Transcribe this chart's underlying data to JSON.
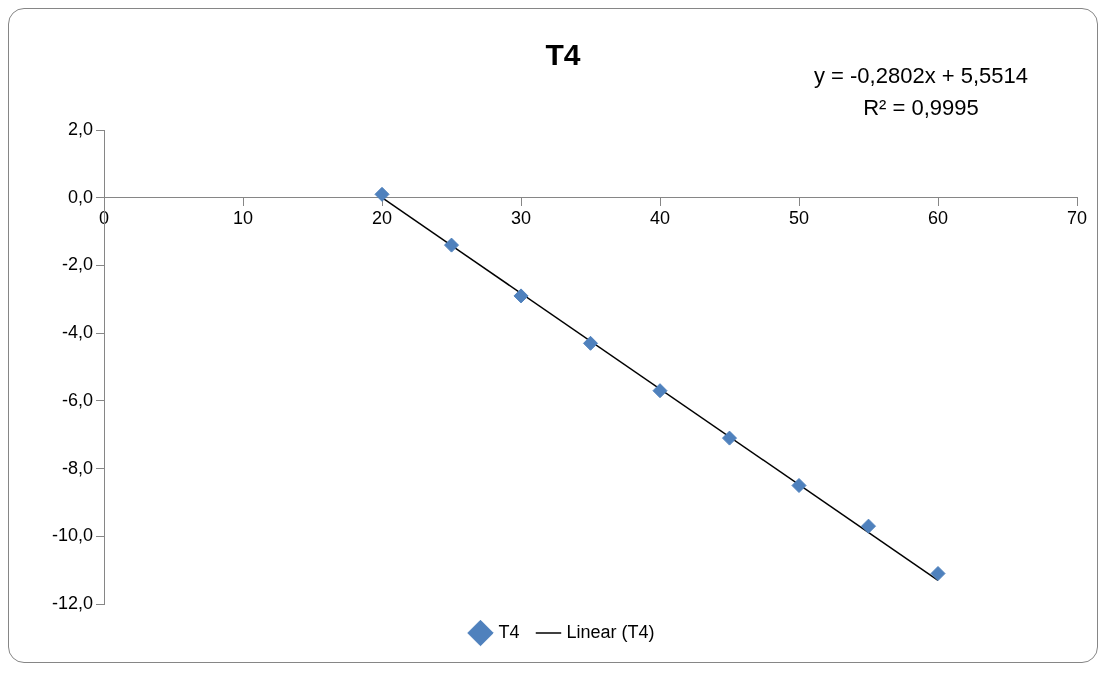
{
  "chart_data": {
    "type": "scatter",
    "title": "T4",
    "annotations": [
      "y = -0,2802x + 5,5514",
      "R² = 0,9995"
    ],
    "x": [
      20,
      25,
      30,
      35,
      40,
      45,
      50,
      55,
      60
    ],
    "series": [
      {
        "name": "T4",
        "color": "#4f81bd",
        "values": [
          0.1,
          -1.4,
          -2.9,
          -4.3,
          -5.7,
          -7.1,
          -8.5,
          -9.7,
          -11.1
        ],
        "marker": "diamond"
      },
      {
        "name": "Linear (T4)",
        "type": "line",
        "color": "#000000",
        "x": [
          20,
          60
        ],
        "values": [
          0.0,
          -11.3
        ],
        "marker": "none"
      }
    ],
    "xlim": [
      0,
      70
    ],
    "xticks": [
      0,
      10,
      20,
      30,
      40,
      50,
      60,
      70
    ],
    "ylim": [
      -12,
      2
    ],
    "yticks": [
      {
        "value": -12,
        "label": "-12,0"
      },
      {
        "value": -10,
        "label": "-10,0"
      },
      {
        "value": -8,
        "label": "-8,0"
      },
      {
        "value": -6,
        "label": "-6,0"
      },
      {
        "value": -4,
        "label": "-4,0"
      },
      {
        "value": -2,
        "label": "-2,0"
      },
      {
        "value": 0,
        "label": "0,0"
      },
      {
        "value": 2,
        "label": "2,0"
      }
    ],
    "grid": false,
    "legend": "bottom"
  }
}
